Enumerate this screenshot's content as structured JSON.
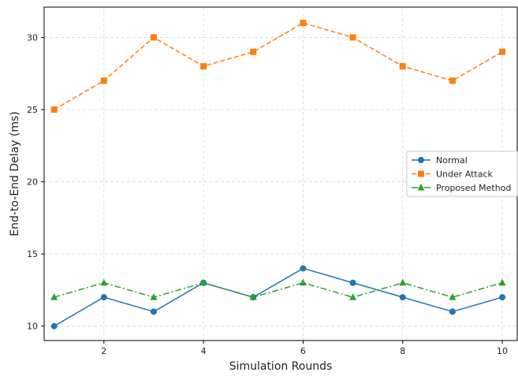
{
  "chart_data": {
    "type": "line",
    "title": "",
    "xlabel": "Simulation Rounds",
    "ylabel": "End-to-End Delay (ms)",
    "x": [
      1,
      2,
      3,
      4,
      5,
      6,
      7,
      8,
      9,
      10
    ],
    "xlim": [
      0.8,
      10.3
    ],
    "ylim": [
      9,
      32.1
    ],
    "xticks": [
      2,
      4,
      6,
      8,
      10
    ],
    "yticks": [
      10,
      15,
      20,
      25,
      30
    ],
    "grid": true,
    "legend_position": "center-right",
    "series": [
      {
        "name": "Normal",
        "values": [
          10,
          12,
          11,
          13,
          12,
          14,
          13,
          12,
          11,
          12
        ],
        "color": "#1f77b4",
        "marker": "circle",
        "dash": "solid"
      },
      {
        "name": "Under Attack",
        "values": [
          25,
          27,
          30,
          28,
          29,
          31,
          30,
          28,
          27,
          29
        ],
        "color": "#ff7f0e",
        "marker": "square",
        "dash": "dashed"
      },
      {
        "name": "Proposed Method",
        "values": [
          12,
          13,
          12,
          13,
          12,
          13,
          12,
          13,
          12,
          13
        ],
        "color": "#2ca02c",
        "marker": "triangle",
        "dash": "dashdot"
      }
    ]
  }
}
